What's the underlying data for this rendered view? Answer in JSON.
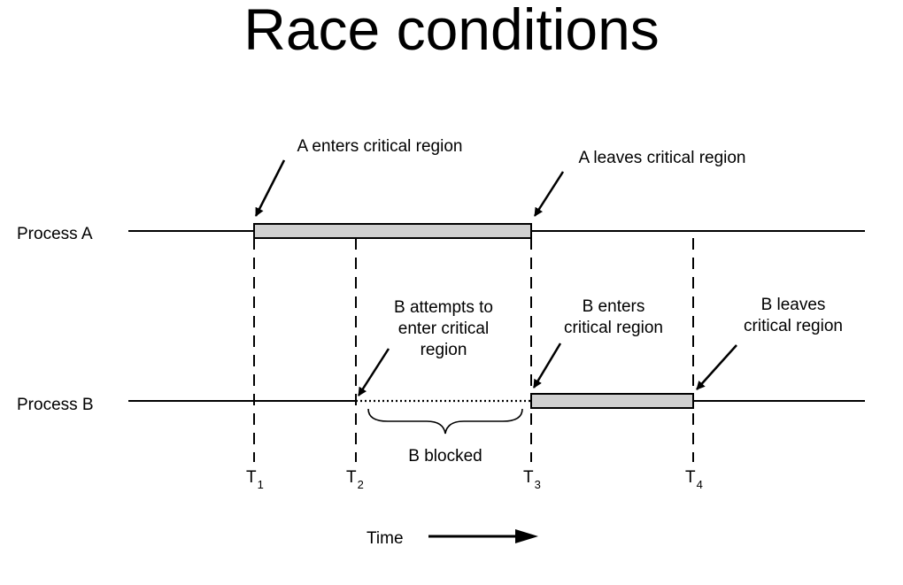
{
  "title": "Race conditions",
  "processes": {
    "a_label": "Process A",
    "b_label": "Process B"
  },
  "annotations": {
    "a_enters": "A enters critical region",
    "a_leaves": "A leaves critical region",
    "b_attempts": [
      "B attempts to",
      "enter critical",
      "region"
    ],
    "b_enters": [
      "B enters",
      "critical region"
    ],
    "b_leaves": [
      "B leaves",
      "critical region"
    ],
    "b_blocked": "B blocked"
  },
  "time_marks": [
    {
      "letter": "T",
      "sub": "1"
    },
    {
      "letter": "T",
      "sub": "2"
    },
    {
      "letter": "T",
      "sub": "3"
    },
    {
      "letter": "T",
      "sub": "4"
    }
  ],
  "time_axis_label": "Time",
  "colors": {
    "region_fill": "#d0d0d0",
    "line": "#000000"
  }
}
